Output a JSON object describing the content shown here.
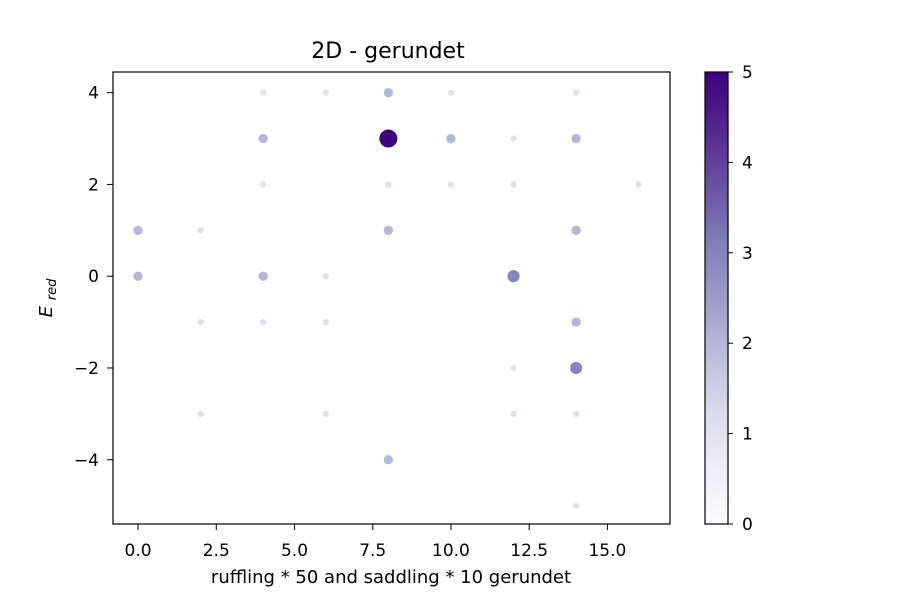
{
  "chart_data": {
    "type": "scatter",
    "title": "2D - gerundet",
    "xlabel": "ruffling * 50 and saddling * 10 gerundet",
    "ylabel": "E",
    "ylabel_sub": "red",
    "xlim": [
      -0.8,
      17.0
    ],
    "ylim": [
      -5.4,
      4.45
    ],
    "xticks": [
      0.0,
      2.5,
      5.0,
      7.5,
      10.0,
      12.5,
      15.0
    ],
    "xtick_labels": [
      "0.0",
      "2.5",
      "5.0",
      "7.5",
      "10.0",
      "12.5",
      "15.0"
    ],
    "yticks": [
      4,
      2,
      0,
      -2,
      -4
    ],
    "ytick_labels": [
      "4",
      "2",
      "0",
      "−2",
      "−4"
    ],
    "colorbar": {
      "colormap": "Purples",
      "min": 0,
      "max": 5,
      "ticks": [
        5,
        4,
        3,
        2,
        1,
        0
      ],
      "tick_labels": [
        "5",
        "4",
        "3",
        "2",
        "1",
        "0"
      ]
    },
    "points": [
      {
        "x": 4,
        "y": 4,
        "c": 1
      },
      {
        "x": 6,
        "y": 4,
        "c": 1
      },
      {
        "x": 8,
        "y": 4,
        "c": 2
      },
      {
        "x": 10,
        "y": 4,
        "c": 1
      },
      {
        "x": 14,
        "y": 4,
        "c": 1
      },
      {
        "x": 4,
        "y": 3,
        "c": 2
      },
      {
        "x": 8,
        "y": 3,
        "c": 5
      },
      {
        "x": 10,
        "y": 3,
        "c": 2
      },
      {
        "x": 12,
        "y": 3,
        "c": 1
      },
      {
        "x": 14,
        "y": 3,
        "c": 2
      },
      {
        "x": 4,
        "y": 2,
        "c": 1
      },
      {
        "x": 8,
        "y": 2,
        "c": 1
      },
      {
        "x": 10,
        "y": 2,
        "c": 1
      },
      {
        "x": 12,
        "y": 2,
        "c": 1
      },
      {
        "x": 16,
        "y": 2,
        "c": 1
      },
      {
        "x": 0,
        "y": 1,
        "c": 2
      },
      {
        "x": 2,
        "y": 1,
        "c": 1
      },
      {
        "x": 8,
        "y": 1,
        "c": 2
      },
      {
        "x": 14,
        "y": 1,
        "c": 2
      },
      {
        "x": 0,
        "y": 0,
        "c": 2
      },
      {
        "x": 4,
        "y": 0,
        "c": 2
      },
      {
        "x": 6,
        "y": 0,
        "c": 1
      },
      {
        "x": 12,
        "y": 0,
        "c": 3
      },
      {
        "x": 2,
        "y": -1,
        "c": 1
      },
      {
        "x": 4,
        "y": -1,
        "c": 1
      },
      {
        "x": 6,
        "y": -1,
        "c": 1
      },
      {
        "x": 14,
        "y": -1,
        "c": 2
      },
      {
        "x": 12,
        "y": -2,
        "c": 1
      },
      {
        "x": 14,
        "y": -2,
        "c": 3
      },
      {
        "x": 2,
        "y": -3,
        "c": 1
      },
      {
        "x": 6,
        "y": -3,
        "c": 1
      },
      {
        "x": 12,
        "y": -3,
        "c": 1
      },
      {
        "x": 14,
        "y": -3,
        "c": 1
      },
      {
        "x": 8,
        "y": -4,
        "c": 2
      },
      {
        "x": 14,
        "y": -5,
        "c": 1
      }
    ]
  }
}
